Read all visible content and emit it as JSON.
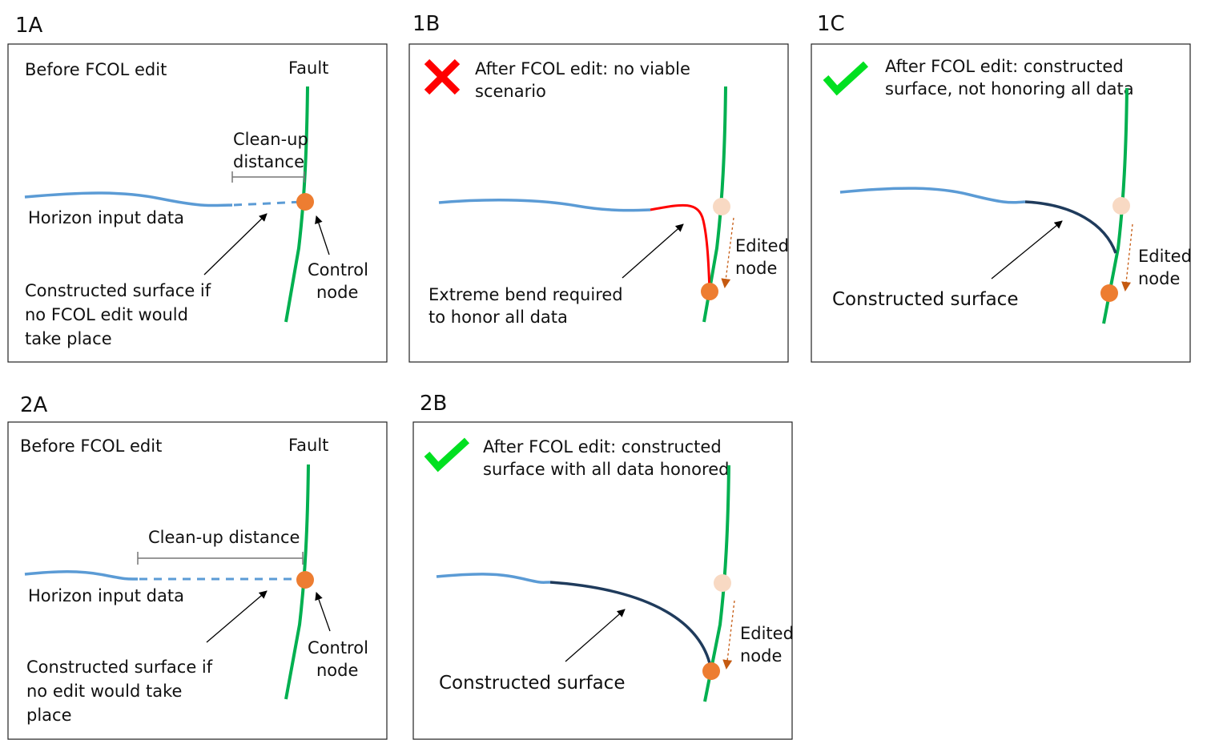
{
  "panels": {
    "p1a": {
      "label": "1A",
      "title": "Before FCOL edit",
      "fault": "Fault",
      "cleanup": [
        "Clean-up",
        "distance"
      ],
      "horizon": "Horizon input data",
      "control": [
        "Control",
        "node"
      ],
      "constructed": [
        "Constructed surface if",
        "no FCOL edit would",
        "take place"
      ]
    },
    "p1b": {
      "label": "1B",
      "title": [
        "After FCOL edit: no viable",
        "scenario"
      ],
      "edited": [
        "Edited",
        "node"
      ],
      "bend": [
        "Extreme bend required",
        "to honor all data"
      ],
      "status_icon": "cross-icon"
    },
    "p1c": {
      "label": "1C",
      "title": [
        "After FCOL edit: constructed",
        "surface, not honoring all data"
      ],
      "edited": [
        "Edited",
        "node"
      ],
      "constructed": "Constructed surface",
      "status_icon": "check-icon"
    },
    "p2a": {
      "label": "2A",
      "title": "Before FCOL edit",
      "fault": "Fault",
      "cleanup": "Clean-up distance",
      "horizon": "Horizon input data",
      "control": [
        "Control",
        "node"
      ],
      "constructed": [
        "Constructed surface if",
        "no edit would take",
        "place"
      ]
    },
    "p2b": {
      "label": "2B",
      "title": [
        "After FCOL edit: constructed",
        "surface with all data honored"
      ],
      "edited": [
        "Edited",
        "node"
      ],
      "constructed": "Constructed surface",
      "status_icon": "check-icon"
    }
  },
  "colors": {
    "fault": "#00b050",
    "horizon": "#5b9bd5",
    "constructed": "#1f3b5c",
    "node": "#ed7d31",
    "bad": "#ff0000",
    "check": "#00e020"
  }
}
